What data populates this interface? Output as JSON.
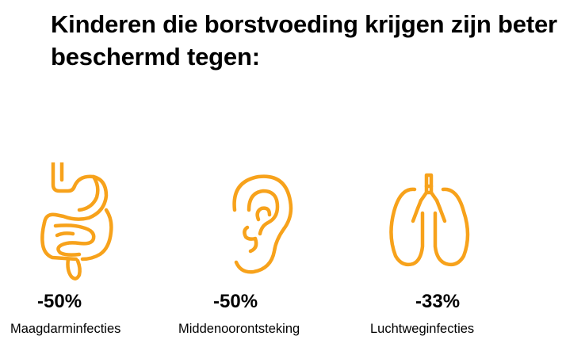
{
  "headline": "Kinderen die borstvoeding krijgen zijn beter beschermd tegen:",
  "accent_color": "#F7A21B",
  "stats": [
    {
      "icon": "intestine-icon",
      "value": "-50%",
      "label": "Maagdarminfecties"
    },
    {
      "icon": "ear-icon",
      "value": "-50%",
      "label": "Middenoorontsteking"
    },
    {
      "icon": "lungs-icon",
      "value": "-33%",
      "label": "Luchtweginfecties"
    }
  ]
}
